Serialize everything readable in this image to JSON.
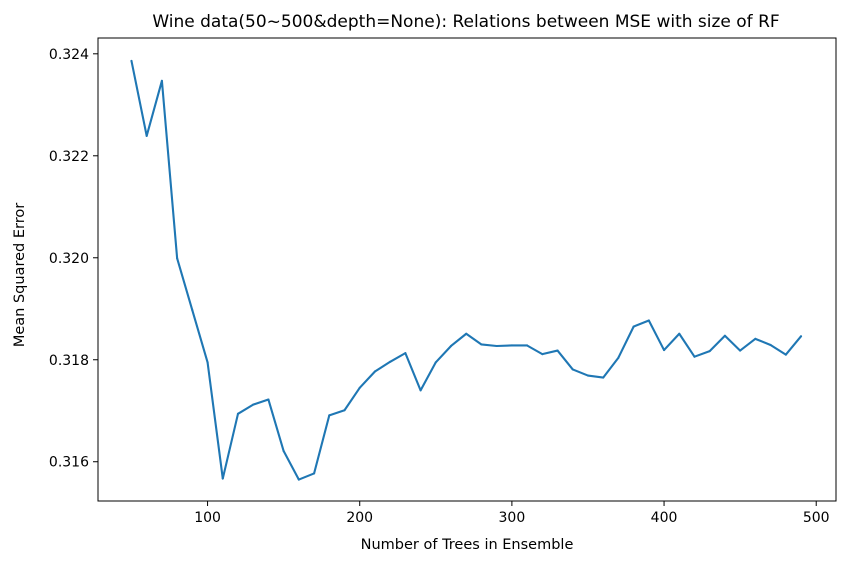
{
  "chart_data": {
    "type": "line",
    "title": "Wine data(50~500&depth=None): Relations between MSE with size of RF",
    "xlabel": "Number of Trees in Ensemble",
    "ylabel": "Mean Squared Error",
    "xlim": [
      28,
      513
    ],
    "ylim": [
      0.31523,
      0.32431
    ],
    "xticks": [
      100,
      200,
      300,
      400,
      500
    ],
    "yticks": [
      0.316,
      0.318,
      0.32,
      0.322,
      0.324
    ],
    "xtick_labels": [
      "100",
      "200",
      "300",
      "400",
      "500"
    ],
    "ytick_labels": [
      "0.316",
      "0.318",
      "0.320",
      "0.322",
      "0.324"
    ],
    "grid": false,
    "series": [
      {
        "name": "MSE",
        "color": "#1f77b4",
        "x": [
          50,
          60,
          70,
          80,
          90,
          100,
          110,
          120,
          130,
          140,
          150,
          160,
          170,
          180,
          190,
          200,
          210,
          220,
          230,
          240,
          250,
          260,
          270,
          280,
          290,
          300,
          310,
          320,
          330,
          340,
          350,
          360,
          370,
          380,
          390,
          400,
          410,
          420,
          430,
          440,
          450,
          460,
          470,
          480,
          490
        ],
        "values": [
          0.32386,
          0.32239,
          0.32347,
          0.31999,
          0.31897,
          0.31795,
          0.31567,
          0.31694,
          0.31712,
          0.31722,
          0.31621,
          0.31565,
          0.31577,
          0.31691,
          0.31701,
          0.31745,
          0.31777,
          0.31796,
          0.31813,
          0.3174,
          0.31795,
          0.31827,
          0.31851,
          0.3183,
          0.31827,
          0.31828,
          0.31828,
          0.31811,
          0.31818,
          0.31781,
          0.31769,
          0.31765,
          0.31804,
          0.31865,
          0.31877,
          0.31819,
          0.31851,
          0.31806,
          0.31817,
          0.31847,
          0.31818,
          0.31841,
          0.31829,
          0.3181,
          0.31846
        ]
      }
    ]
  }
}
